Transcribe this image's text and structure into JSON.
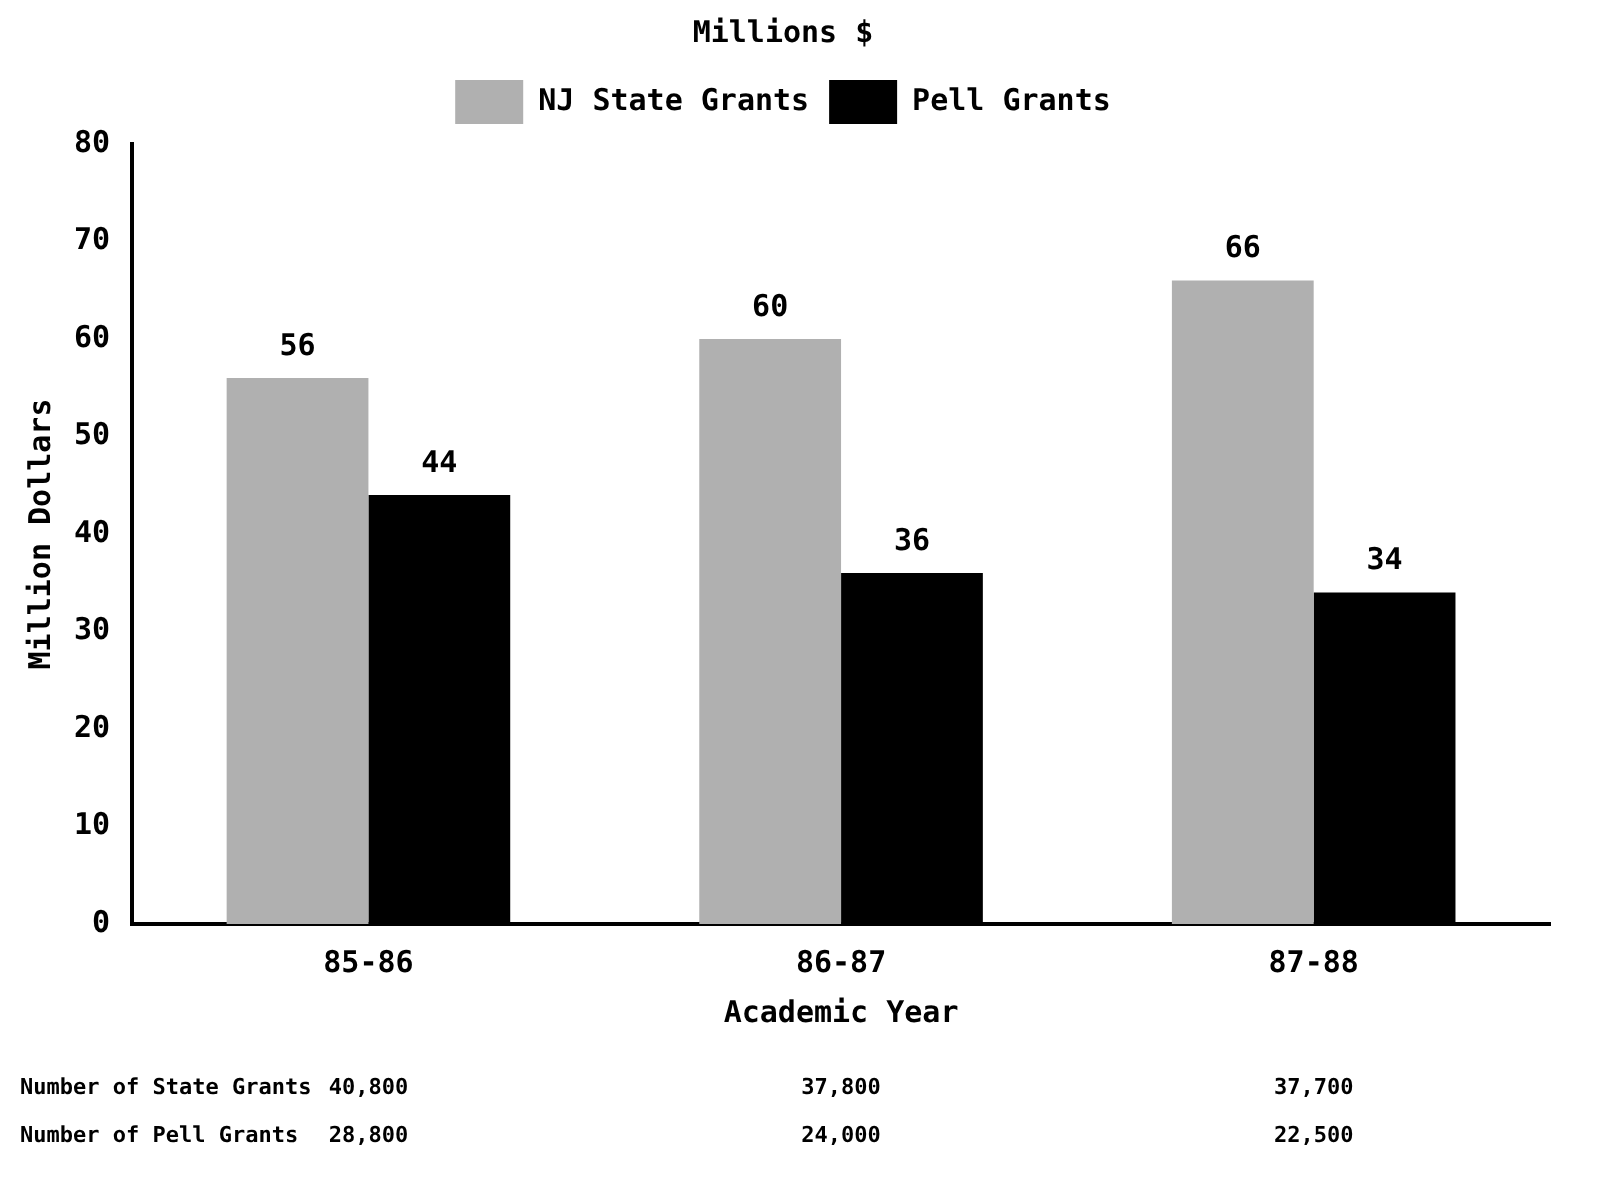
{
  "chart_data": {
    "type": "bar",
    "subtitle": "Millions $",
    "xlabel": "Academic Year",
    "ylabel": "Million Dollars",
    "categories": [
      "85-86",
      "86-87",
      "87-88"
    ],
    "series": [
      {
        "name": "NJ State Grants",
        "color": "#b0b0b0",
        "values": [
          56,
          60,
          66
        ]
      },
      {
        "name": "Pell Grants",
        "color": "#000000",
        "values": [
          44,
          36,
          34
        ]
      }
    ],
    "ylim": [
      0,
      80
    ],
    "yticks": [
      0,
      10,
      20,
      30,
      40,
      50,
      60,
      70,
      80
    ],
    "grid": false,
    "legend": "top",
    "data_labels": true,
    "annotations": [
      "Number of State Grants",
      "40,800",
      "37,800",
      "37,700",
      "Number of Pell Grants",
      "28,800",
      "24,000",
      "22,500"
    ]
  }
}
